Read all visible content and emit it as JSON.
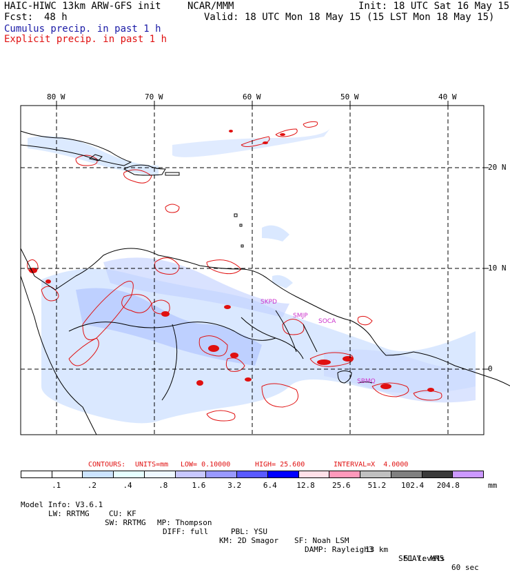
{
  "header": {
    "model": "HAIC-HIWC 13km ARW-GFS init",
    "org": "NCAR/MMM",
    "init": "Init: 18 UTC Sat 16 May 15",
    "fcst_label": "Fcst:",
    "fcst_value": "48 h",
    "valid": "Valid: 18 UTC Mon 18 May 15 (15 LST Mon 18 May 15)",
    "cumulus": "Cumulus precip. in past 1 h",
    "explicit": "Explicit precip. in past 1 h"
  },
  "map": {
    "lon_labels": [
      "80 W",
      "70 W",
      "60 W",
      "50 W",
      "40 W"
    ],
    "lat_labels": [
      "20 N",
      "10 N",
      "0"
    ],
    "station_labels": [
      "SKPD",
      "SMJP",
      "SOCA",
      "SBMQ"
    ]
  },
  "contours": {
    "title": "CONTOURS:",
    "units": "UNITS=mm",
    "low": "LOW= 0.10000",
    "high": "HIGH= 25.600",
    "interval": "INTERVAL=X  4.0000"
  },
  "colorbar": {
    "colors": [
      "#ffffff",
      "#ffffff",
      "#cce4ff",
      "#e6ffff",
      "#eef8ff",
      "#c8c8ff",
      "#9999ff",
      "#5a5aff",
      "#0000ff",
      "#ffe0e8",
      "#ff99bb",
      "#c0c0c0",
      "#808080",
      "#3a3a3a",
      "#cc99ff"
    ],
    "ticks": [
      ".1",
      ".2",
      ".4",
      ".8",
      "1.6",
      "3.2",
      "6.4",
      "12.8",
      "25.6",
      "51.2",
      "102.4",
      "204.8"
    ],
    "unit": "mm"
  },
  "model_info": {
    "line1": [
      "Model Info: V3.6.1",
      "CU: KF",
      "MP: Thompson",
      "PBL: YSU",
      "SF: Noah LSM",
      "13 km",
      "51 levels",
      "60 sec"
    ],
    "line2": [
      "LW: RRTMG",
      "SW: RRTMG",
      "DIFF: full",
      "KM: 2D Smagor",
      "DAMP: Rayleigh3",
      "SFLAY: MM5"
    ]
  }
}
